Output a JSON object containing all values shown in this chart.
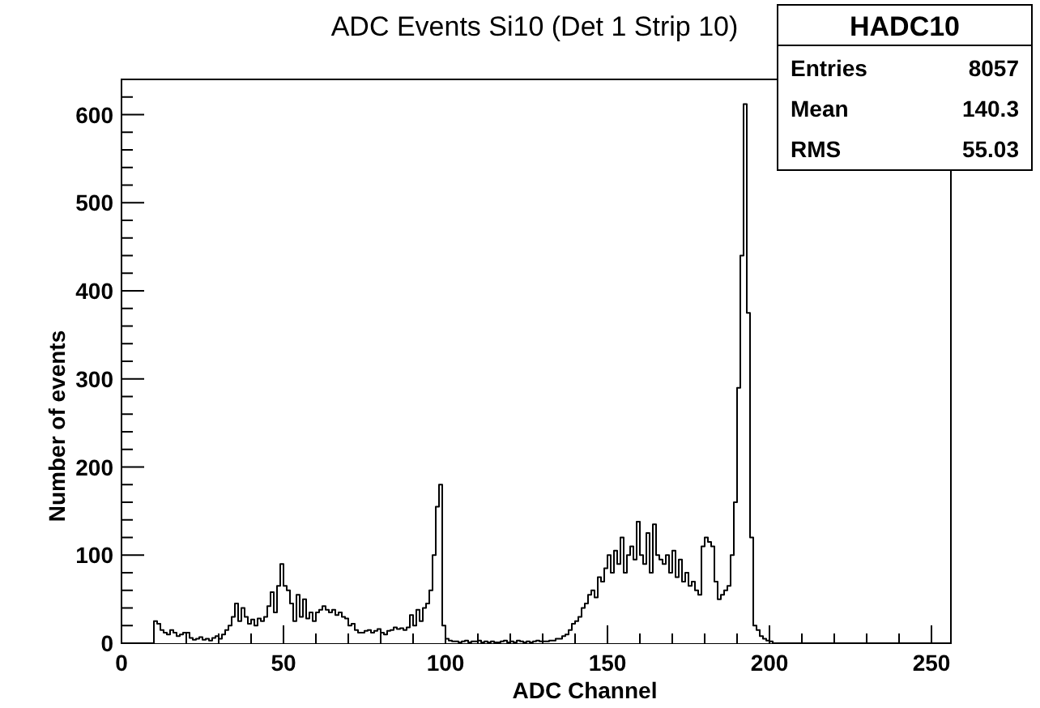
{
  "chart_data": {
    "type": "histogram",
    "title": "ADC Events Si10 (Det 1 Strip 10)",
    "xlabel": "ADC Channel",
    "ylabel": "Number of events",
    "color": "#000000",
    "bins": [
      10,
      11,
      12,
      13,
      14,
      15,
      16,
      17,
      18,
      19,
      20,
      21,
      22,
      23,
      24,
      25,
      26,
      27,
      28,
      29,
      30,
      31,
      32,
      33,
      34,
      35,
      36,
      37,
      38,
      39,
      40,
      41,
      42,
      43,
      44,
      45,
      46,
      47,
      48,
      49,
      50,
      51,
      52,
      53,
      54,
      55,
      56,
      57,
      58,
      59,
      60,
      61,
      62,
      63,
      64,
      65,
      66,
      67,
      68,
      69,
      70,
      71,
      72,
      73,
      74,
      75,
      76,
      77,
      78,
      79,
      80,
      81,
      82,
      83,
      84,
      85,
      86,
      87,
      88,
      89,
      90,
      91,
      92,
      93,
      94,
      95,
      96,
      97,
      98,
      99,
      100,
      101,
      102,
      103,
      104,
      105,
      106,
      107,
      108,
      109,
      110,
      111,
      112,
      113,
      114,
      115,
      116,
      117,
      118,
      119,
      120,
      121,
      122,
      123,
      124,
      125,
      126,
      127,
      128,
      129,
      130,
      131,
      132,
      133,
      134,
      135,
      136,
      137,
      138,
      139,
      140,
      141,
      142,
      143,
      144,
      145,
      146,
      147,
      148,
      149,
      150,
      151,
      152,
      153,
      154,
      155,
      156,
      157,
      158,
      159,
      160,
      161,
      162,
      163,
      164,
      165,
      166,
      167,
      168,
      169,
      170,
      171,
      172,
      173,
      174,
      175,
      176,
      177,
      178,
      179,
      180,
      181,
      182,
      183,
      184,
      185,
      186,
      187,
      188,
      189,
      190,
      191,
      192,
      193,
      194,
      195,
      196,
      197,
      198,
      199,
      200,
      201
    ],
    "values": [
      25,
      22,
      15,
      12,
      10,
      15,
      12,
      8,
      10,
      12,
      12,
      6,
      4,
      5,
      7,
      4,
      5,
      3,
      6,
      8,
      5,
      10,
      15,
      20,
      30,
      45,
      25,
      40,
      30,
      22,
      27,
      20,
      28,
      25,
      30,
      42,
      58,
      35,
      65,
      90,
      65,
      60,
      45,
      25,
      55,
      30,
      50,
      28,
      35,
      25,
      35,
      38,
      42,
      38,
      35,
      38,
      32,
      35,
      30,
      28,
      20,
      22,
      15,
      12,
      12,
      14,
      15,
      12,
      14,
      16,
      12,
      10,
      14,
      15,
      18,
      16,
      17,
      15,
      18,
      32,
      20,
      38,
      25,
      40,
      45,
      60,
      100,
      155,
      180,
      20,
      5,
      3,
      2,
      2,
      1,
      2,
      3,
      1,
      2,
      2,
      3,
      1,
      2,
      1,
      2,
      1,
      1,
      2,
      3,
      1,
      2,
      1,
      3,
      2,
      1,
      2,
      1,
      2,
      3,
      2,
      2,
      2,
      3,
      3,
      5,
      5,
      8,
      10,
      15,
      22,
      25,
      30,
      40,
      45,
      55,
      60,
      52,
      75,
      70,
      85,
      100,
      80,
      105,
      90,
      120,
      80,
      100,
      110,
      95,
      138,
      100,
      90,
      125,
      80,
      135,
      100,
      95,
      90,
      100,
      80,
      105,
      75,
      95,
      70,
      80,
      65,
      70,
      60,
      55,
      110,
      120,
      115,
      110,
      70,
      50,
      55,
      60,
      65,
      100,
      160,
      290,
      440,
      612,
      375,
      120,
      20,
      15,
      8,
      5,
      3,
      2
    ],
    "xlim": [
      0,
      256
    ],
    "ylim": [
      0,
      640
    ],
    "xticks": [
      0,
      {
        "value": 10,
        "label": null
      },
      {
        "value": 20,
        "label": null
      },
      {
        "value": 30,
        "label": null
      },
      {
        "value": 40,
        "label": null
      },
      50,
      {
        "value": 60,
        "label": null
      },
      {
        "value": 70,
        "label": null
      },
      {
        "value": 80,
        "label": null
      },
      {
        "value": 90,
        "label": null
      },
      100,
      {
        "value": 110,
        "label": null
      },
      {
        "value": 120,
        "label": null
      },
      {
        "value": 130,
        "label": null
      },
      {
        "value": 140,
        "label": null
      },
      150,
      {
        "value": 160,
        "label": null
      },
      {
        "value": 170,
        "label": null
      },
      {
        "value": 180,
        "label": null
      },
      {
        "value": 190,
        "label": null
      },
      200,
      {
        "value": 210,
        "label": null
      },
      {
        "value": 220,
        "label": null
      },
      {
        "value": 230,
        "label": null
      },
      {
        "value": 240,
        "label": null
      },
      250
    ],
    "yticks": [
      0,
      {
        "value": 20,
        "label": null
      },
      {
        "value": 40,
        "label": null
      },
      {
        "value": 60,
        "label": null
      },
      {
        "value": 80,
        "label": null
      },
      100,
      {
        "value": 120,
        "label": null
      },
      {
        "value": 140,
        "label": null
      },
      {
        "value": 160,
        "label": null
      },
      {
        "value": 180,
        "label": null
      },
      200,
      {
        "value": 220,
        "label": null
      },
      {
        "value": 240,
        "label": null
      },
      {
        "value": 260,
        "label": null
      },
      {
        "value": 280,
        "label": null
      },
      300,
      {
        "value": 320,
        "label": null
      },
      {
        "value": 340,
        "label": null
      },
      {
        "value": 360,
        "label": null
      },
      {
        "value": 380,
        "label": null
      },
      400,
      {
        "value": 420,
        "label": null
      },
      {
        "value": 440,
        "label": null
      },
      {
        "value": 460,
        "label": null
      },
      {
        "value": 480,
        "label": null
      },
      500,
      {
        "value": 520,
        "label": null
      },
      {
        "value": 540,
        "label": null
      },
      {
        "value": 560,
        "label": null
      },
      {
        "value": 580,
        "label": null
      },
      600,
      {
        "value": 620,
        "label": null
      }
    ],
    "annotations": [
      "HADC10",
      "Entries 8057",
      "Mean 140.3",
      "RMS 55.03"
    ]
  }
}
